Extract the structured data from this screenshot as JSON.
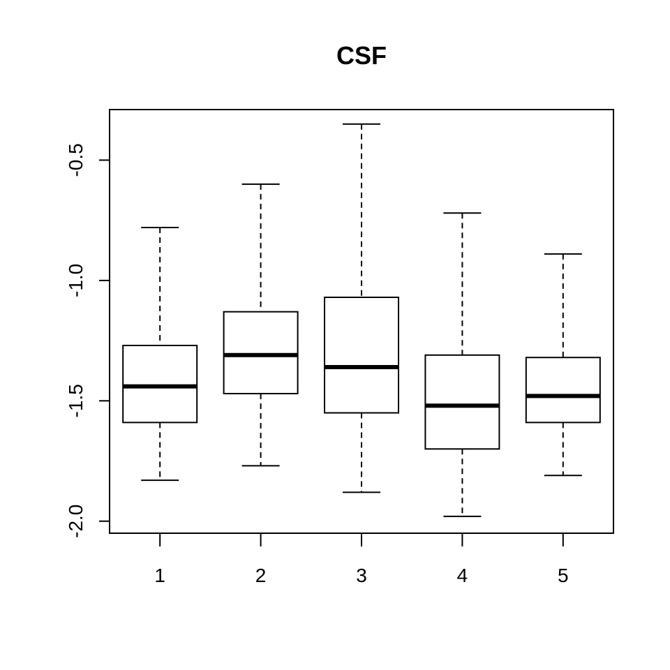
{
  "chart_data": {
    "type": "boxplot",
    "title": "CSF",
    "xlabel": "",
    "ylabel": "",
    "categories": [
      "1",
      "2",
      "3",
      "4",
      "5"
    ],
    "ylim": [
      -2.05,
      -0.29
    ],
    "yticks": [
      -2.0,
      -1.5,
      -1.0,
      -0.5
    ],
    "ytick_labels": [
      "-2.0",
      "-1.5",
      "-1.0",
      "-0.5"
    ],
    "boxes": [
      {
        "category": "1",
        "whisker_low": -1.83,
        "q1": -1.59,
        "median": -1.44,
        "q3": -1.27,
        "whisker_high": -0.78
      },
      {
        "category": "2",
        "whisker_low": -1.77,
        "q1": -1.47,
        "median": -1.31,
        "q3": -1.13,
        "whisker_high": -0.6
      },
      {
        "category": "3",
        "whisker_low": -1.88,
        "q1": -1.55,
        "median": -1.36,
        "q3": -1.07,
        "whisker_high": -0.35
      },
      {
        "category": "4",
        "whisker_low": -1.98,
        "q1": -1.7,
        "median": -1.52,
        "q3": -1.31,
        "whisker_high": -0.72
      },
      {
        "category": "5",
        "whisker_low": -1.81,
        "q1": -1.59,
        "median": -1.48,
        "q3": -1.32,
        "whisker_high": -0.89
      }
    ],
    "grid": false,
    "legend": "none"
  }
}
